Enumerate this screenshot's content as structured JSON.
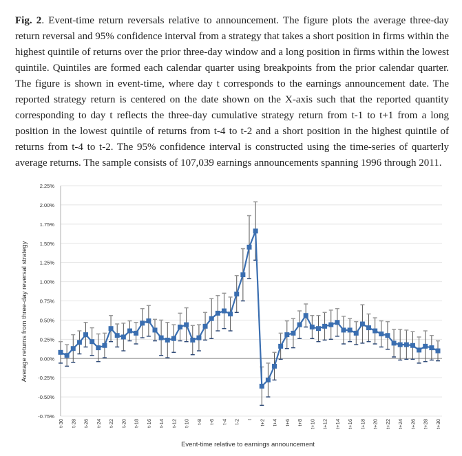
{
  "caption": {
    "label": "Fig. 2",
    "text": ". Event-time return reversals relative to announcement. The figure plots the average three-day return reversal and 95% confidence interval from a strategy that takes a short position in firms within the highest quintile of returns over the prior three-day window and a long position in firms within the lowest quintile. Quintiles are formed each calendar quarter using breakpoints from the prior calendar quarter. The figure is shown in event-time, where day t corresponds to the earnings announcement date. The reported strategy return is centered on the date shown on the X-axis such that the reported quantity corresponding to day t reflects the three-day cumulative strategy return from t-1 to t+1 from a long position in the lowest quintile of returns from t-4 to t-2 and a short position in the highest quintile of returns from t-4 to t-2. The 95% confidence interval is constructed using the time-series of quarterly average returns. The sample consists of 107,039 earnings announcements spanning 1996 through 2011."
  },
  "chart_data": {
    "type": "line",
    "title": "",
    "xlabel": "Event-time relative to earnings announcement",
    "ylabel": "Average returns from three-day reversal strategy",
    "ylim": [
      -0.75,
      2.25
    ],
    "yticks": [
      "-0.75%",
      "-0.50%",
      "-0.25%",
      "0.00%",
      "0.25%",
      "0.50%",
      "0.75%",
      "1.00%",
      "1.25%",
      "1.50%",
      "1.75%",
      "2.00%",
      "2.25%"
    ],
    "ytick_values": [
      -0.75,
      -0.5,
      -0.25,
      0,
      0.25,
      0.5,
      0.75,
      1.0,
      1.25,
      1.5,
      1.75,
      2.0,
      2.25
    ],
    "xtick_labels": [
      "t-30",
      "t-28",
      "t-26",
      "t-24",
      "t-22",
      "t-20",
      "t-18",
      "t-16",
      "t-14",
      "t-12",
      "t-10",
      "t-8",
      "t-6",
      "t-4",
      "t-2",
      "t",
      "t+2",
      "t+4",
      "t+6",
      "t+8",
      "t+10",
      "t+12",
      "t+14",
      "t+16",
      "t+18",
      "t+20",
      "t+22",
      "t+24",
      "t+26",
      "t+28",
      "t+30"
    ],
    "grid": "horizontal",
    "series_color": "#3a6eb0",
    "x": [
      -30,
      -29,
      -28,
      -27,
      -26,
      -25,
      -24,
      -23,
      -22,
      -21,
      -20,
      -19,
      -18,
      -17,
      -16,
      -15,
      -14,
      -13,
      -12,
      -11,
      -10,
      -9,
      -8,
      -7,
      -6,
      -5,
      -4,
      -3,
      -2,
      -1,
      0,
      1,
      2,
      3,
      4,
      5,
      6,
      7,
      8,
      9,
      10,
      11,
      12,
      13,
      14,
      15,
      16,
      17,
      18,
      19,
      20,
      21,
      22,
      23,
      24,
      25,
      26,
      27,
      28,
      29,
      30
    ],
    "values": [
      0.08,
      0.04,
      0.13,
      0.21,
      0.31,
      0.22,
      0.14,
      0.17,
      0.39,
      0.3,
      0.28,
      0.36,
      0.33,
      0.46,
      0.49,
      0.37,
      0.27,
      0.24,
      0.26,
      0.41,
      0.44,
      0.24,
      0.27,
      0.42,
      0.52,
      0.59,
      0.62,
      0.58,
      0.84,
      1.09,
      1.45,
      1.66,
      -0.36,
      -0.28,
      -0.1,
      0.16,
      0.31,
      0.33,
      0.44,
      0.56,
      0.41,
      0.39,
      0.42,
      0.44,
      0.47,
      0.37,
      0.37,
      0.33,
      0.45,
      0.4,
      0.36,
      0.32,
      0.3,
      0.2,
      0.18,
      0.18,
      0.17,
      0.11,
      0.16,
      0.14,
      0.1
    ],
    "ci_halfwidth": [
      0.14,
      0.14,
      0.18,
      0.15,
      0.16,
      0.18,
      0.18,
      0.16,
      0.17,
      0.15,
      0.18,
      0.13,
      0.14,
      0.19,
      0.2,
      0.14,
      0.23,
      0.23,
      0.18,
      0.18,
      0.22,
      0.19,
      0.17,
      0.18,
      0.26,
      0.23,
      0.23,
      0.22,
      0.24,
      0.34,
      0.41,
      0.38,
      0.25,
      0.22,
      0.18,
      0.17,
      0.18,
      0.19,
      0.18,
      0.15,
      0.15,
      0.17,
      0.18,
      0.19,
      0.18,
      0.18,
      0.15,
      0.15,
      0.25,
      0.18,
      0.17,
      0.17,
      0.18,
      0.18,
      0.2,
      0.19,
      0.18,
      0.17,
      0.2,
      0.16,
      0.13
    ]
  }
}
